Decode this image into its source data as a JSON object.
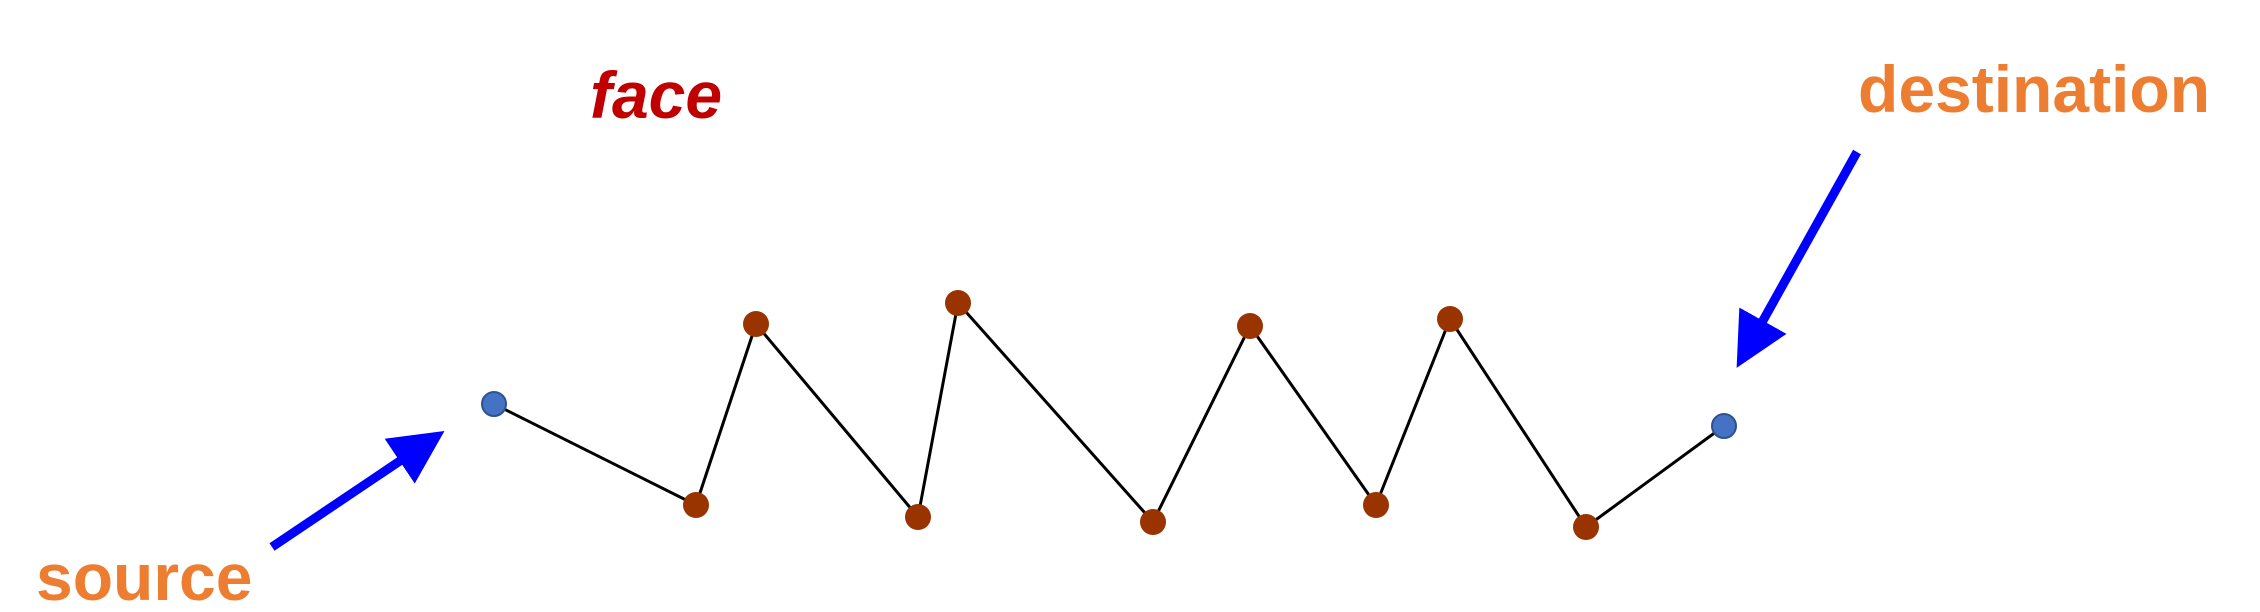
{
  "labels": {
    "face": "face",
    "source": "source",
    "destination": "destination"
  },
  "path": {
    "vertex_count": 11,
    "endpoint_indices": [
      0,
      10
    ]
  },
  "colors": {
    "face_label": "#c00000",
    "endpoint_label": "#ed7d31",
    "arrow": "#0000ff",
    "endpoint_node": "#4472c4",
    "inner_node": "#993300",
    "edge": "#000000"
  }
}
